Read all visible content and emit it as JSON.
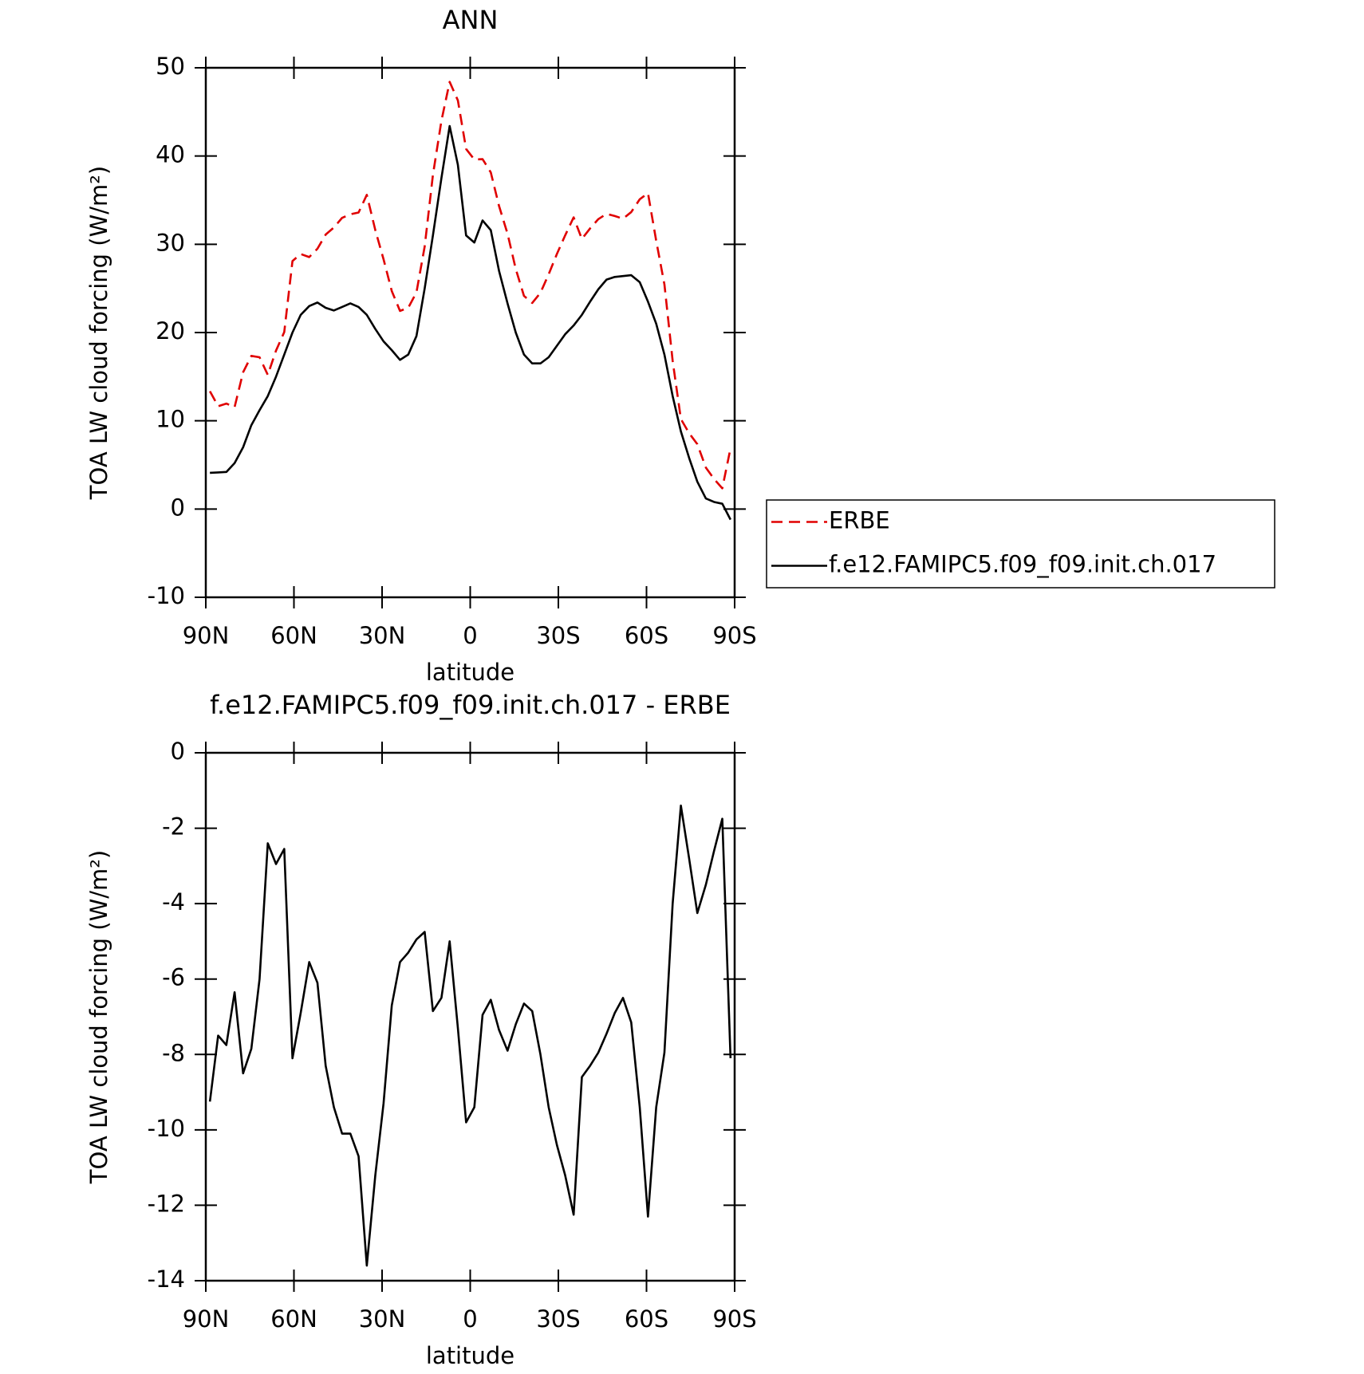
{
  "chart_data": [
    {
      "type": "line",
      "title": "ANN",
      "xlabel": "latitude",
      "ylabel": "TOA LW cloud forcing (W/m²)",
      "x": [
        88.6,
        85.8,
        83.0,
        80.2,
        77.3,
        74.5,
        71.7,
        68.9,
        66.1,
        63.3,
        60.5,
        57.7,
        54.8,
        52.0,
        49.2,
        46.4,
        43.6,
        40.8,
        38.0,
        35.2,
        32.3,
        29.5,
        26.7,
        23.9,
        21.1,
        18.3,
        15.5,
        12.7,
        9.8,
        7.0,
        4.2,
        1.4,
        -1.4,
        -4.2,
        -7.0,
        -9.8,
        -12.7,
        -15.5,
        -18.3,
        -21.1,
        -23.9,
        -26.7,
        -29.5,
        -32.3,
        -35.2,
        -38.0,
        -40.8,
        -43.6,
        -46.4,
        -49.2,
        -52.0,
        -54.8,
        -57.7,
        -60.5,
        -63.3,
        -66.1,
        -68.9,
        -71.7,
        -74.5,
        -77.3,
        -80.2,
        -83.0,
        -85.8,
        -88.6
      ],
      "series": [
        {
          "name": "ERBE",
          "color": "#e00000",
          "dash": true,
          "values": [
            13.35,
            11.65,
            11.95,
            11.55,
            15.5,
            17.35,
            17.2,
            15.2,
            17.95,
            20.05,
            28.1,
            28.9,
            28.55,
            29.5,
            31.1,
            31.9,
            33.0,
            33.4,
            33.6,
            35.6,
            31.6,
            28.3,
            24.7,
            22.45,
            22.8,
            24.55,
            29.75,
            37.85,
            44.0,
            48.4,
            46.3,
            40.8,
            39.6,
            39.65,
            38.15,
            34.35,
            31.2,
            27.2,
            24.15,
            23.35,
            24.5,
            26.6,
            28.9,
            31.0,
            33.05,
            30.6,
            31.8,
            32.85,
            33.45,
            33.2,
            32.9,
            33.65,
            35.1,
            35.8,
            30.4,
            25.45,
            16.8,
            10.2,
            8.6,
            7.35,
            4.7,
            3.4,
            2.35,
            6.9
          ]
        },
        {
          "name": "f.e12.FAMIPC5.f09_f09.init.ch.017",
          "color": "#000000",
          "dash": false,
          "values": [
            4.1,
            4.15,
            4.2,
            5.2,
            7.0,
            9.5,
            11.2,
            12.8,
            15.0,
            17.5,
            20.0,
            22.0,
            23.0,
            23.4,
            22.8,
            22.5,
            22.9,
            23.3,
            22.9,
            22.0,
            20.4,
            19.0,
            18.0,
            16.9,
            17.5,
            19.6,
            25.0,
            31.0,
            37.5,
            43.4,
            39.0,
            31.0,
            30.2,
            32.7,
            31.6,
            27.0,
            23.3,
            20.0,
            17.5,
            16.5,
            16.5,
            17.2,
            18.5,
            19.8,
            20.8,
            22.0,
            23.5,
            24.9,
            26.0,
            26.3,
            26.4,
            26.5,
            25.7,
            23.5,
            21.0,
            17.5,
            12.8,
            8.8,
            5.8,
            3.1,
            1.2,
            0.8,
            0.6,
            -1.2
          ]
        }
      ],
      "xlim": [
        90,
        -90
      ],
      "xticks": [
        {
          "value": 90,
          "label": "90N"
        },
        {
          "value": 60,
          "label": "60N"
        },
        {
          "value": 30,
          "label": "30N"
        },
        0,
        {
          "value": -30,
          "label": "30S"
        },
        {
          "value": -60,
          "label": "60S"
        },
        {
          "value": -90,
          "label": "90S"
        }
      ],
      "ylim": [
        -10,
        50
      ],
      "yticks": [
        -10,
        0,
        10,
        20,
        30,
        40,
        50
      ],
      "legend": "right"
    },
    {
      "type": "line",
      "title": "f.e12.FAMIPC5.f09_f09.init.ch.017 - ERBE",
      "xlabel": "latitude",
      "ylabel": "TOA LW cloud forcing (W/m²)",
      "x": [
        88.6,
        85.8,
        83.0,
        80.2,
        77.3,
        74.5,
        71.7,
        68.9,
        66.1,
        63.3,
        60.5,
        57.7,
        54.8,
        52.0,
        49.2,
        46.4,
        43.6,
        40.8,
        38.0,
        35.2,
        32.3,
        29.5,
        26.7,
        23.9,
        21.1,
        18.3,
        15.5,
        12.7,
        9.8,
        7.0,
        4.2,
        1.4,
        -1.4,
        -4.2,
        -7.0,
        -9.8,
        -12.7,
        -15.5,
        -18.3,
        -21.1,
        -23.9,
        -26.7,
        -29.5,
        -32.3,
        -35.2,
        -38.0,
        -40.8,
        -43.6,
        -46.4,
        -49.2,
        -52.0,
        -54.8,
        -57.7,
        -60.5,
        -63.3,
        -66.1,
        -68.9,
        -71.7,
        -74.5,
        -77.3,
        -80.2,
        -83.0,
        -85.8,
        -88.6
      ],
      "series": [
        {
          "color": "#000000",
          "dash": false,
          "values": [
            -9.25,
            -7.5,
            -7.75,
            -6.35,
            -8.5,
            -7.85,
            -6.0,
            -2.4,
            -2.95,
            -2.55,
            -8.1,
            -6.9,
            -5.55,
            -6.1,
            -8.3,
            -9.4,
            -10.1,
            -10.1,
            -10.7,
            -13.6,
            -11.2,
            -9.3,
            -6.7,
            -5.55,
            -5.3,
            -4.95,
            -4.75,
            -6.85,
            -6.5,
            -5.0,
            -7.3,
            -9.8,
            -9.4,
            -6.95,
            -6.55,
            -7.35,
            -7.9,
            -7.2,
            -6.65,
            -6.85,
            -8.0,
            -9.4,
            -10.4,
            -11.2,
            -12.25,
            -8.6,
            -8.3,
            -7.95,
            -7.45,
            -6.9,
            -6.5,
            -7.15,
            -9.4,
            -12.3,
            -9.4,
            -7.95,
            -4.0,
            -1.4,
            -2.8,
            -4.25,
            -3.5,
            -2.6,
            -1.75,
            -8.1
          ]
        }
      ],
      "xlim": [
        90,
        -90
      ],
      "xticks": [
        {
          "value": 90,
          "label": "90N"
        },
        {
          "value": 60,
          "label": "60N"
        },
        {
          "value": 30,
          "label": "30N"
        },
        0,
        {
          "value": -30,
          "label": "30S"
        },
        {
          "value": -60,
          "label": "60S"
        },
        {
          "value": -90,
          "label": "90S"
        }
      ],
      "ylim": [
        -14,
        0
      ],
      "yticks": [
        -14,
        -12,
        -10,
        -8,
        -6,
        -4,
        -2,
        0
      ]
    }
  ]
}
